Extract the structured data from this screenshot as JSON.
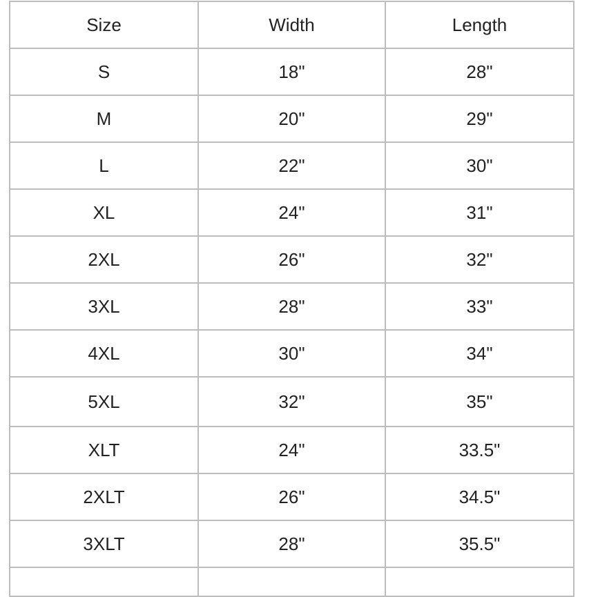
{
  "table": {
    "headers": [
      "Size",
      "Width",
      "Length"
    ],
    "rows": [
      [
        "S",
        "18\"",
        "28\""
      ],
      [
        "M",
        "20\"",
        "29\""
      ],
      [
        "L",
        "22\"",
        "30\""
      ],
      [
        "XL",
        "24\"",
        "31\""
      ],
      [
        "2XL",
        "26\"",
        "32\""
      ],
      [
        "3XL",
        "28\"",
        "33\""
      ],
      [
        "4XL",
        "30\"",
        "34\""
      ],
      [
        "5XL",
        "32\"",
        "35\""
      ],
      [
        "XLT",
        "24\"",
        "33.5\""
      ],
      [
        "2XLT",
        "26\"",
        "34.5\""
      ],
      [
        "3XLT",
        "28\"",
        "35.5\""
      ]
    ]
  }
}
